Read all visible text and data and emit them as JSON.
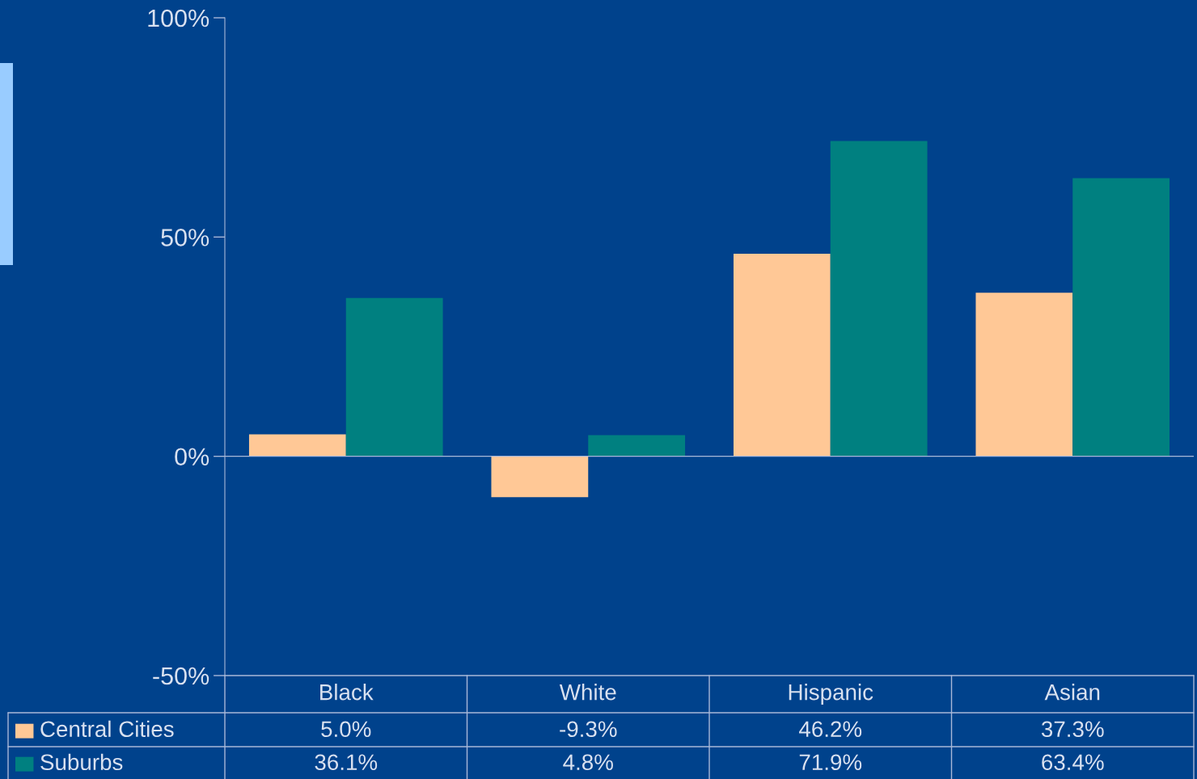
{
  "chart_data": {
    "type": "bar",
    "categories": [
      "Black",
      "White",
      "Hispanic",
      "Asian"
    ],
    "series": [
      {
        "name": "Central Cities",
        "color": "#ffc896",
        "values": [
          5.0,
          -9.3,
          46.2,
          37.3
        ],
        "value_labels": [
          "5.0%",
          "-9.3%",
          "46.2%",
          "37.3%"
        ]
      },
      {
        "name": "Suburbs",
        "color": "#008080",
        "values": [
          36.1,
          4.8,
          71.9,
          63.4
        ],
        "value_labels": [
          "36.1%",
          "4.8%",
          "71.9%",
          "63.4%"
        ]
      }
    ],
    "ylim": [
      -50,
      100
    ],
    "yticks": [
      {
        "value": -50,
        "label": "-50%"
      },
      {
        "value": 0,
        "label": "0%"
      },
      {
        "value": 50,
        "label": "50%"
      },
      {
        "value": 100,
        "label": "100%"
      }
    ],
    "grid": false,
    "legend": "bottom left",
    "ref_lines": [
      {
        "axis": "y",
        "value": 0,
        "color": "#aab8d8"
      }
    ]
  }
}
